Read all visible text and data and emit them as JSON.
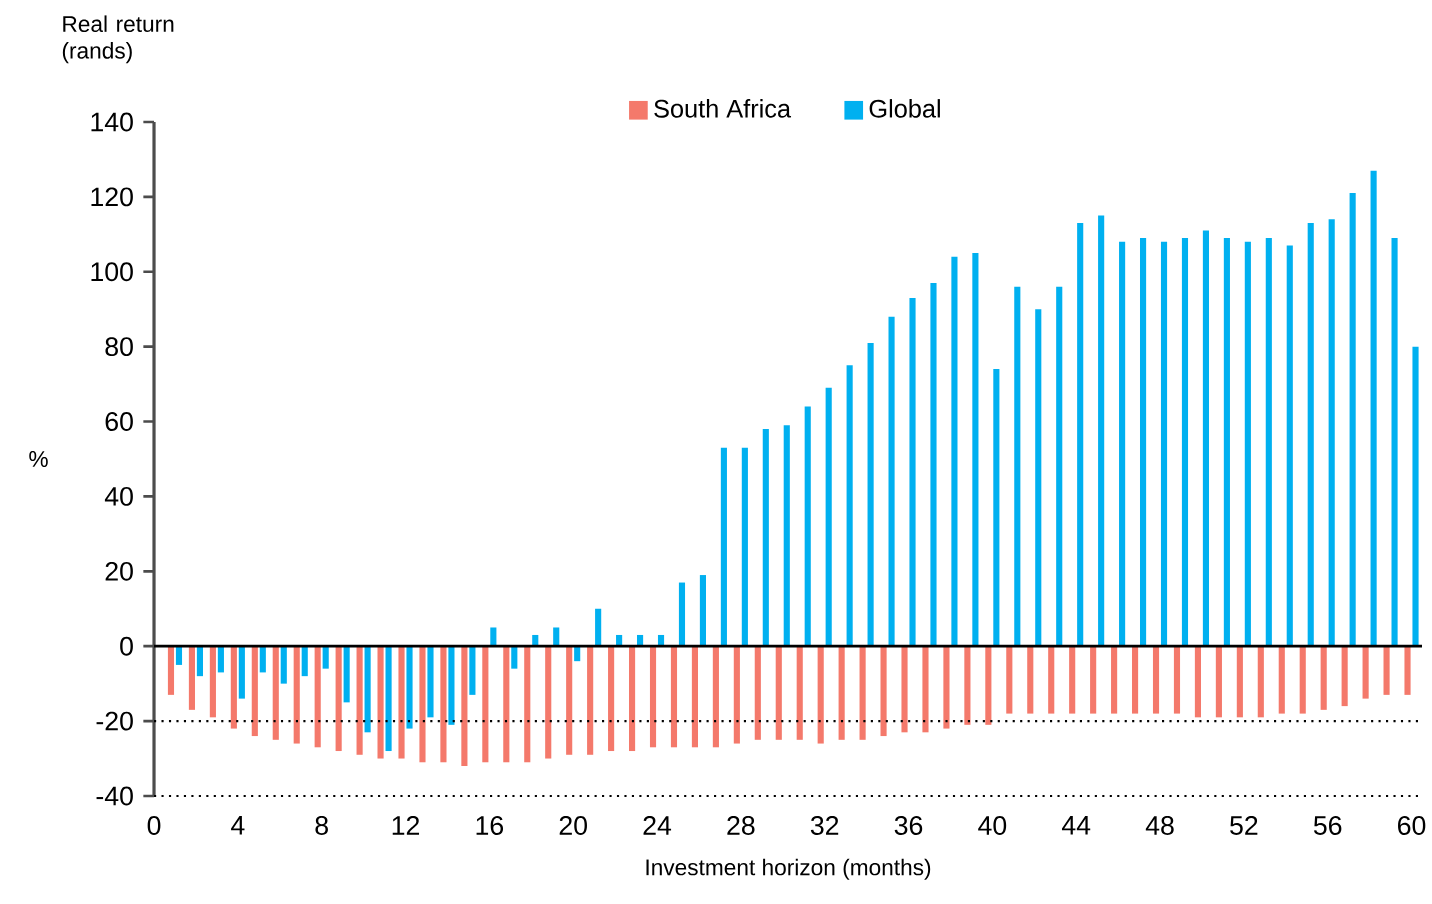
{
  "chart_data": {
    "type": "bar",
    "x": [
      1,
      2,
      3,
      4,
      5,
      6,
      7,
      8,
      9,
      10,
      11,
      12,
      13,
      14,
      15,
      16,
      17,
      18,
      19,
      20,
      21,
      22,
      23,
      24,
      25,
      26,
      27,
      28,
      29,
      30,
      31,
      32,
      33,
      34,
      35,
      36,
      37,
      38,
      39,
      40,
      41,
      42,
      43,
      44,
      45,
      46,
      47,
      48,
      49,
      50,
      51,
      52,
      53,
      54,
      55,
      56,
      57,
      58,
      59,
      60
    ],
    "series": [
      {
        "name": "South Africa",
        "color": "#f4796b",
        "values": [
          -13,
          -17,
          -19,
          -22,
          -24,
          -25,
          -26,
          -27,
          -28,
          -29,
          -30,
          -30,
          -31,
          -31,
          -32,
          -31,
          -31,
          -31,
          -30,
          -29,
          -29,
          -28,
          -28,
          -27,
          -27,
          -27,
          -27,
          -26,
          -25,
          -25,
          -25,
          -26,
          -25,
          -25,
          -24,
          -23,
          -23,
          -22,
          -21,
          -21,
          -18,
          -18,
          -18,
          -18,
          -18,
          -18,
          -18,
          -18,
          -18,
          -19,
          -19,
          -19,
          -19,
          -18,
          -18,
          -17,
          -16,
          -14,
          -13,
          -13
        ]
      },
      {
        "name": "Global",
        "color": "#00b0f0",
        "values": [
          -5,
          -8,
          -7,
          -14,
          -7,
          -10,
          -8,
          -6,
          -15,
          -23,
          -28,
          -22,
          -19,
          -21,
          -13,
          5,
          -6,
          3,
          5,
          -4,
          10,
          3,
          3,
          3,
          17,
          19,
          53,
          53,
          58,
          59,
          64,
          69,
          75,
          81,
          88,
          93,
          97,
          104,
          105,
          74,
          96,
          90,
          96,
          113,
          115,
          108,
          109,
          108,
          109,
          111,
          109,
          108,
          109,
          107,
          113,
          114,
          121,
          127,
          109,
          80
        ]
      }
    ],
    "xlim": [
      0,
      60.5
    ],
    "xticks": [
      0,
      4,
      8,
      12,
      16,
      20,
      24,
      28,
      32,
      36,
      40,
      44,
      48,
      52,
      56,
      60
    ],
    "ylim": [
      -40,
      140
    ],
    "yticks": [
      -40,
      -20,
      0,
      20,
      40,
      60,
      80,
      100,
      120,
      140
    ],
    "xlabel": "Investment horizon (months)",
    "ylabel": "%",
    "legend": "top",
    "ref_lines": [
      {
        "axis": "y",
        "value": 0,
        "color": "#000000",
        "line_style": "solid"
      },
      {
        "axis": "y",
        "value": -20,
        "color": "#000000",
        "line_style": "dotted"
      },
      {
        "axis": "y",
        "value": -40,
        "color": "#000000",
        "line_style": "dotted"
      }
    ],
    "annotations": [
      "Real return (rands)"
    ]
  }
}
